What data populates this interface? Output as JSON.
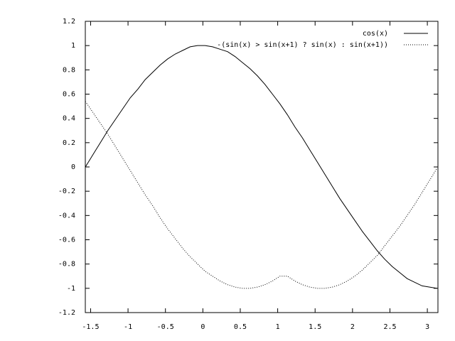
{
  "chart_data": {
    "type": "line",
    "x": [
      -1.57,
      -1.47,
      -1.37,
      -1.27,
      -1.17,
      -1.07,
      -0.97,
      -0.87,
      -0.77,
      -0.67,
      -0.57,
      -0.47,
      -0.37,
      -0.27,
      -0.17,
      -0.07,
      0.03,
      0.13,
      0.23,
      0.33,
      0.43,
      0.53,
      0.63,
      0.73,
      0.83,
      0.93,
      1.03,
      1.13,
      1.23,
      1.33,
      1.43,
      1.53,
      1.63,
      1.73,
      1.83,
      1.93,
      2.03,
      2.13,
      2.23,
      2.33,
      2.43,
      2.53,
      2.63,
      2.73,
      2.83,
      2.93,
      3.03,
      3.13
    ],
    "series": [
      {
        "name": "cos(x)",
        "color": "#000000",
        "dash": "solid",
        "values": [
          0.0,
          0.1,
          0.2,
          0.3,
          0.39,
          0.48,
          0.57,
          0.64,
          0.72,
          0.78,
          0.84,
          0.89,
          0.93,
          0.96,
          0.99,
          1.0,
          1.0,
          0.99,
          0.97,
          0.95,
          0.91,
          0.86,
          0.81,
          0.75,
          0.68,
          0.6,
          0.52,
          0.43,
          0.33,
          0.24,
          0.14,
          0.04,
          -0.06,
          -0.16,
          -0.26,
          -0.35,
          -0.44,
          -0.53,
          -0.61,
          -0.69,
          -0.76,
          -0.82,
          -0.87,
          -0.92,
          -0.95,
          -0.98,
          -0.99,
          -1.0
        ]
      },
      {
        "name": "-(sin(x) > sin(x+1) ? sin(x) : sin(x+1))",
        "color": "#000000",
        "dash": "dotted",
        "values": [
          0.54,
          0.45,
          0.36,
          0.27,
          0.17,
          0.07,
          -0.03,
          -0.13,
          -0.23,
          -0.32,
          -0.42,
          -0.51,
          -0.59,
          -0.67,
          -0.74,
          -0.8,
          -0.86,
          -0.9,
          -0.94,
          -0.97,
          -0.99,
          -1.0,
          -1.0,
          -0.99,
          -0.97,
          -0.94,
          -0.9,
          -0.9,
          -0.94,
          -0.97,
          -0.99,
          -1.0,
          -1.0,
          -0.99,
          -0.97,
          -0.94,
          -0.9,
          -0.85,
          -0.79,
          -0.73,
          -0.65,
          -0.57,
          -0.49,
          -0.4,
          -0.31,
          -0.21,
          -0.11,
          -0.01
        ]
      }
    ],
    "xlim": [
      -1.5708,
      3.1416
    ],
    "ylim": [
      -1.2,
      1.2
    ],
    "xticks": [
      -1.5,
      -1,
      -0.5,
      0,
      0.5,
      1,
      1.5,
      2,
      2.5,
      3
    ],
    "yticks": [
      -1.2,
      -1,
      -0.8,
      -0.6,
      -0.4,
      -0.2,
      0,
      0.2,
      0.4,
      0.6,
      0.8,
      1,
      1.2
    ],
    "grid": false,
    "legend": "top-right"
  }
}
